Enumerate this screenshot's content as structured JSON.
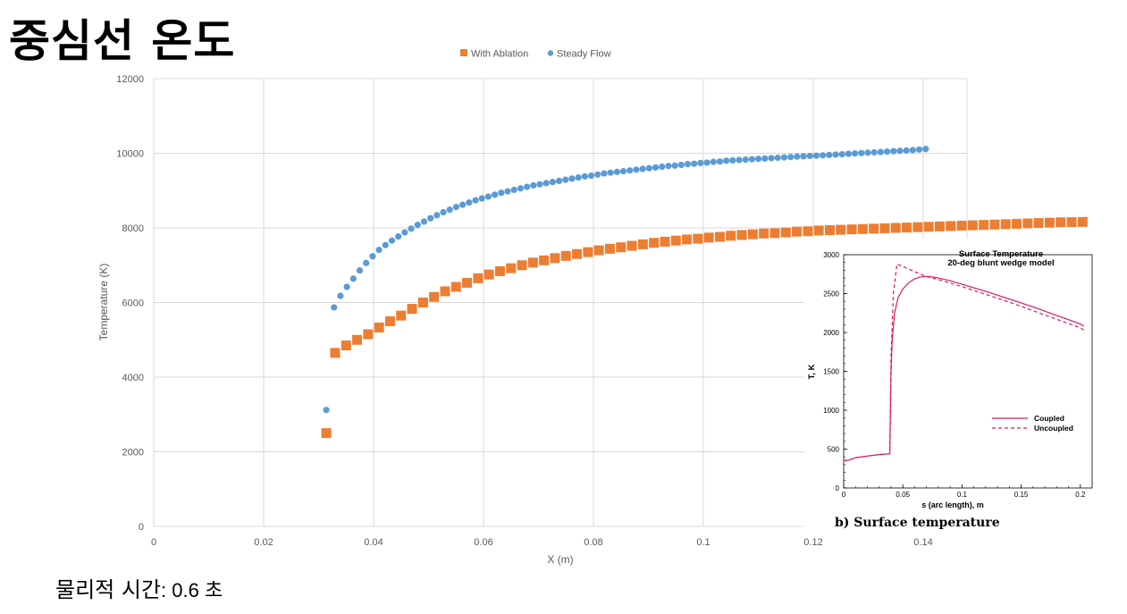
{
  "slide": {
    "title": "중심선 온도",
    "footer_label": "물리적 시간",
    "footer_value": ": 0.6 초"
  },
  "colors": {
    "with_ablation": "#ED7D31",
    "steady_flow": "#5B9BD5",
    "grid": "#D9D9D9",
    "inset_line": "#D81B60"
  },
  "chart_data": [
    {
      "type": "scatter",
      "title": "",
      "xlabel": "X (m)",
      "ylabel": "Temperature (K)",
      "xlim": [
        0,
        0.15
      ],
      "ylim": [
        0,
        12000
      ],
      "xticks": [
        "0",
        "0.02",
        "0.04",
        "0.06",
        "0.08",
        "0.1",
        "0.12",
        "0.14"
      ],
      "yticks": [
        "0",
        "2000",
        "4000",
        "6000",
        "8000",
        "10000",
        "12000"
      ],
      "grid": true,
      "legend_position": "top",
      "series": [
        {
          "name": "With Ablation",
          "marker": "square",
          "x_start": 0.0314,
          "x_step": 0.002,
          "first_value": 2500,
          "values": [
            4650,
            4850,
            5000,
            5150,
            5330,
            5500,
            5650,
            5830,
            6000,
            6150,
            6300,
            6420,
            6530,
            6650,
            6750,
            6840,
            6920,
            7000,
            7070,
            7130,
            7190,
            7250,
            7300,
            7350,
            7400,
            7440,
            7480,
            7520,
            7560,
            7600,
            7630,
            7660,
            7690,
            7710,
            7740,
            7760,
            7790,
            7810,
            7830,
            7850,
            7860,
            7880,
            7900,
            7910,
            7930,
            7940,
            7950,
            7960,
            7970,
            7980,
            7990,
            8000,
            8010,
            8020,
            8030,
            8040,
            8050,
            8060,
            8070,
            8080,
            8090,
            8100,
            8110,
            8120,
            8130,
            8140,
            8150,
            8155,
            8160
          ]
        },
        {
          "name": "Steady Flow",
          "marker": "circle",
          "x_start": 0.0314,
          "x_step": 0.00117,
          "first_value": 3120,
          "values": [
            5870,
            6180,
            6420,
            6640,
            6860,
            7060,
            7240,
            7410,
            7540,
            7660,
            7770,
            7880,
            7980,
            8080,
            8170,
            8260,
            8340,
            8420,
            8490,
            8560,
            8620,
            8680,
            8740,
            8790,
            8840,
            8890,
            8940,
            8980,
            9020,
            9060,
            9100,
            9140,
            9170,
            9200,
            9230,
            9260,
            9290,
            9320,
            9350,
            9380,
            9400,
            9430,
            9460,
            9480,
            9500,
            9520,
            9540,
            9560,
            9580,
            9600,
            9620,
            9640,
            9660,
            9670,
            9690,
            9710,
            9720,
            9740,
            9750,
            9770,
            9780,
            9800,
            9810,
            9820,
            9830,
            9840,
            9850,
            9860,
            9870,
            9880,
            9890,
            9900,
            9910,
            9920,
            9930,
            9935,
            9945,
            9955,
            9965,
            9975,
            9985,
            9995,
            10005,
            10015,
            10025,
            10035,
            10045,
            10055,
            10065,
            10075,
            10085,
            10100,
            10115
          ]
        }
      ]
    },
    {
      "type": "line",
      "title": "Surface Temperature",
      "subtitle": "20-deg blunt wedge model",
      "caption": "b) Surface temperature",
      "xlabel": "s (arc length), m",
      "ylabel": "T, K",
      "xlim": [
        0,
        0.21
      ],
      "ylim": [
        0,
        3000
      ],
      "xticks": [
        "0",
        "0.05",
        "0.1",
        "0.15",
        "0.2"
      ],
      "yticks": [
        "0",
        "500",
        "1000",
        "1500",
        "2000",
        "2500",
        "3000"
      ],
      "legend_position": "right",
      "series": [
        {
          "name": "Coupled",
          "style": "solid",
          "x": [
            0,
            0.005,
            0.01,
            0.02,
            0.03,
            0.039,
            0.04,
            0.041,
            0.043,
            0.046,
            0.05,
            0.055,
            0.06,
            0.065,
            0.07,
            0.075,
            0.08,
            0.09,
            0.1,
            0.12,
            0.14,
            0.16,
            0.18,
            0.2,
            0.203
          ],
          "y": [
            350,
            360,
            390,
            410,
            430,
            440,
            1500,
            1900,
            2250,
            2450,
            2560,
            2640,
            2690,
            2715,
            2720,
            2715,
            2700,
            2665,
            2620,
            2530,
            2430,
            2330,
            2220,
            2110,
            2080
          ]
        },
        {
          "name": "Uncoupled",
          "style": "dashed",
          "x": [
            0,
            0.005,
            0.01,
            0.02,
            0.03,
            0.039,
            0.04,
            0.042,
            0.045,
            0.05,
            0.06,
            0.07,
            0.08,
            0.1,
            0.12,
            0.14,
            0.16,
            0.18,
            0.2,
            0.203
          ],
          "y": [
            350,
            360,
            390,
            410,
            430,
            440,
            1700,
            2500,
            2880,
            2850,
            2780,
            2720,
            2680,
            2590,
            2490,
            2390,
            2280,
            2170,
            2060,
            2030
          ]
        }
      ]
    }
  ]
}
